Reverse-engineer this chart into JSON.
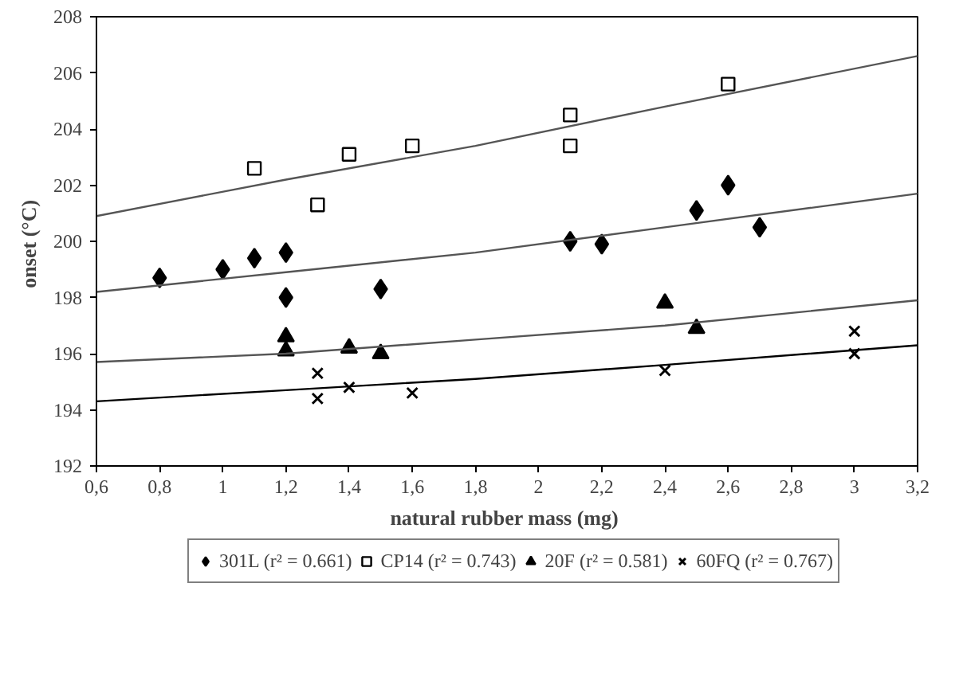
{
  "chart_data": {
    "type": "scatter",
    "xlabel": "natural rubber mass  (mg)",
    "ylabel": "onset  (°C)",
    "xlim": [
      0.6,
      3.2
    ],
    "ylim": [
      192,
      208
    ],
    "xticks": [
      {
        "value": 0.6,
        "label": "0,6"
      },
      {
        "value": 0.8,
        "label": "0,8"
      },
      1,
      {
        "value": 1.2,
        "label": "1,2"
      },
      {
        "value": 1.4,
        "label": "1,4"
      },
      {
        "value": 1.6,
        "label": "1,6"
      },
      {
        "value": 1.8,
        "label": "1,8"
      },
      2,
      {
        "value": 2.2,
        "label": "2,2"
      },
      {
        "value": 2.4,
        "label": "2,4"
      },
      {
        "value": 2.6,
        "label": "2,6"
      },
      {
        "value": 2.8,
        "label": "2,8"
      },
      3,
      {
        "value": 3.2,
        "label": "3,2"
      }
    ],
    "yticks": [
      192,
      194,
      196,
      198,
      200,
      202,
      204,
      206,
      208
    ],
    "grid": false,
    "legend": "bottom",
    "series": [
      {
        "name": "301L (r² = 0.661)",
        "marker": "diamond",
        "color": "#000000",
        "x": [
          0.8,
          1.0,
          1.1,
          1.2,
          1.2,
          1.5,
          2.1,
          2.2,
          2.5,
          2.6,
          2.7
        ],
        "values": [
          198.7,
          199.0,
          199.4,
          199.6,
          198.0,
          198.3,
          200.0,
          199.9,
          201.1,
          202.0,
          200.5
        ]
      },
      {
        "name": "CP14 (r² = 0.743)",
        "marker": "square",
        "color": "#000000",
        "x": [
          1.1,
          1.3,
          1.4,
          1.6,
          2.1,
          2.1,
          2.6
        ],
        "values": [
          202.6,
          201.3,
          203.1,
          203.4,
          204.5,
          203.4,
          205.6
        ]
      },
      {
        "name": "20F (r² = 0.581)",
        "marker": "triangle",
        "color": "#000000",
        "x": [
          1.2,
          1.2,
          1.4,
          1.5,
          2.4,
          2.5
        ],
        "values": [
          196.6,
          196.1,
          196.2,
          196.0,
          197.8,
          196.9
        ]
      },
      {
        "name": "60FQ (r² = 0.767)",
        "marker": "cross",
        "color": "#000000",
        "x": [
          1.3,
          1.3,
          1.4,
          1.6,
          2.4,
          3.0,
          3.0
        ],
        "values": [
          195.3,
          194.4,
          194.8,
          194.6,
          195.4,
          196.8,
          196.0
        ]
      },
      {
        "type": "line",
        "color": "#555555",
        "x": [
          0.6,
          1.2,
          1.8,
          2.4,
          3.2
        ],
        "values": [
          198.2,
          198.9,
          199.6,
          200.5,
          201.7
        ]
      },
      {
        "type": "line",
        "color": "#555555",
        "x": [
          0.6,
          1.2,
          1.8,
          2.4,
          3.2
        ],
        "values": [
          200.9,
          202.2,
          203.4,
          204.8,
          206.6
        ]
      },
      {
        "type": "line",
        "color": "#555555",
        "x": [
          0.6,
          1.2,
          1.8,
          2.4,
          3.2
        ],
        "values": [
          195.7,
          196.0,
          196.5,
          197.0,
          197.9
        ]
      },
      {
        "type": "line",
        "color": "#000000",
        "x": [
          0.6,
          1.2,
          1.8,
          2.4,
          3.2
        ],
        "values": [
          194.3,
          194.7,
          195.1,
          195.6,
          196.3
        ]
      }
    ]
  }
}
